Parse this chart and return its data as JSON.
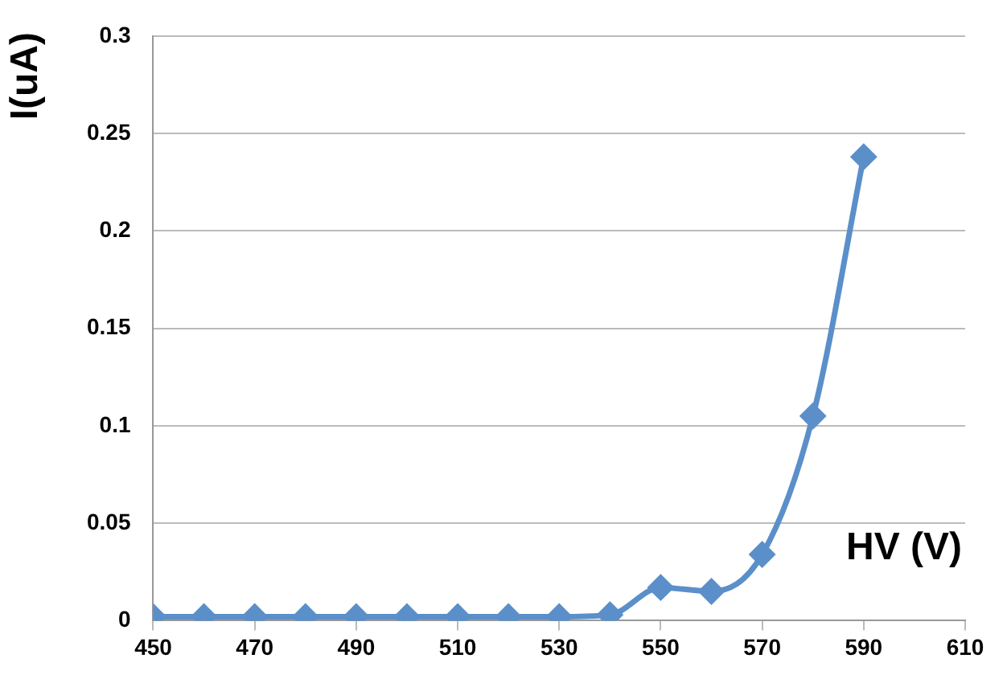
{
  "chart_data": {
    "type": "line",
    "xlabel": "HV (V)",
    "ylabel": "I(uA)",
    "x": [
      450,
      460,
      470,
      480,
      490,
      500,
      510,
      520,
      530,
      540,
      550,
      560,
      570,
      580,
      590
    ],
    "series": [
      {
        "color": "#5b8fc9",
        "values": [
          0.002,
          0.002,
          0.002,
          0.002,
          0.002,
          0.002,
          0.002,
          0.002,
          0.002,
          0.003,
          0.017,
          0.015,
          0.034,
          0.105,
          0.238
        ]
      }
    ],
    "xlim": [
      450,
      610
    ],
    "xticks": [
      450,
      470,
      490,
      510,
      530,
      550,
      570,
      590,
      610
    ],
    "ylim": [
      0,
      0.3
    ],
    "yticks": [
      0,
      0.05,
      0.1,
      0.15,
      0.2,
      0.25,
      0.3
    ],
    "grid": "y",
    "legend": false,
    "marker": "diamond",
    "line_style": "solid"
  }
}
